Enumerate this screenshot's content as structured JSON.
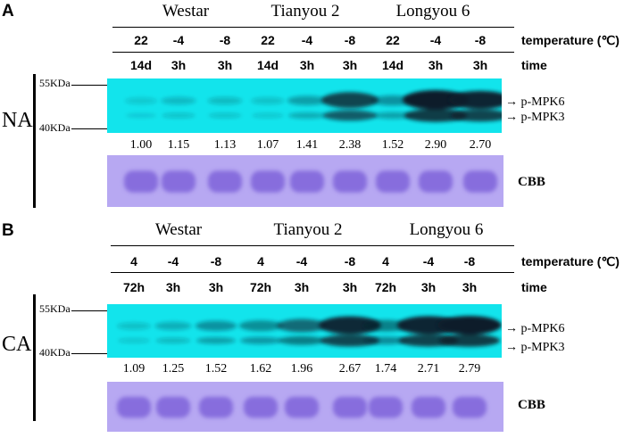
{
  "colors": {
    "western_bg": "#12e4ec",
    "cbb_bg": "#b7a8f2",
    "cbb_band": "#7a5fd8",
    "band_dark": "#0b1f2c"
  },
  "panels": [
    {
      "letter": "A",
      "treatment": "NA",
      "cultivars": [
        "Westar",
        "Tianyou 2",
        "Longyou 6"
      ],
      "temperatures": [
        "22",
        "-4",
        "-8",
        "22",
        "-4",
        "-8",
        "22",
        "-4",
        "-8"
      ],
      "times": [
        "14d",
        "3h",
        "3h",
        "14d",
        "3h",
        "3h",
        "14d",
        "3h",
        "3h"
      ],
      "temperature_label": "temperature (℃)",
      "time_label": "time",
      "marker_high": "55KDa",
      "marker_low": "40KDa",
      "band_labels": [
        "p-MPK6",
        "p-MPK3"
      ],
      "quantification": [
        "1.00",
        "1.15",
        "1.13",
        "1.07",
        "1.41",
        "2.38",
        "1.52",
        "2.90",
        "2.70"
      ],
      "cbb_label": "CBB"
    },
    {
      "letter": "B",
      "treatment": "CA",
      "cultivars": [
        "Westar",
        "Tianyou 2",
        "Longyou 6"
      ],
      "temperatures": [
        "4",
        "-4",
        "-8",
        "4",
        "-4",
        "-8",
        "4",
        "-4",
        "-8"
      ],
      "times": [
        "72h",
        "3h",
        "3h",
        "72h",
        "3h",
        "3h",
        "72h",
        "3h",
        "3h"
      ],
      "temperature_label": "temperature (℃)",
      "time_label": "time",
      "marker_high": "55KDa",
      "marker_low": "40KDa",
      "band_labels": [
        "p-MPK6",
        "p-MPK3"
      ],
      "quantification": [
        "1.09",
        "1.25",
        "1.52",
        "1.62",
        "1.96",
        "2.67",
        "1.74",
        "2.71",
        "2.79"
      ],
      "cbb_label": "CBB"
    }
  ]
}
